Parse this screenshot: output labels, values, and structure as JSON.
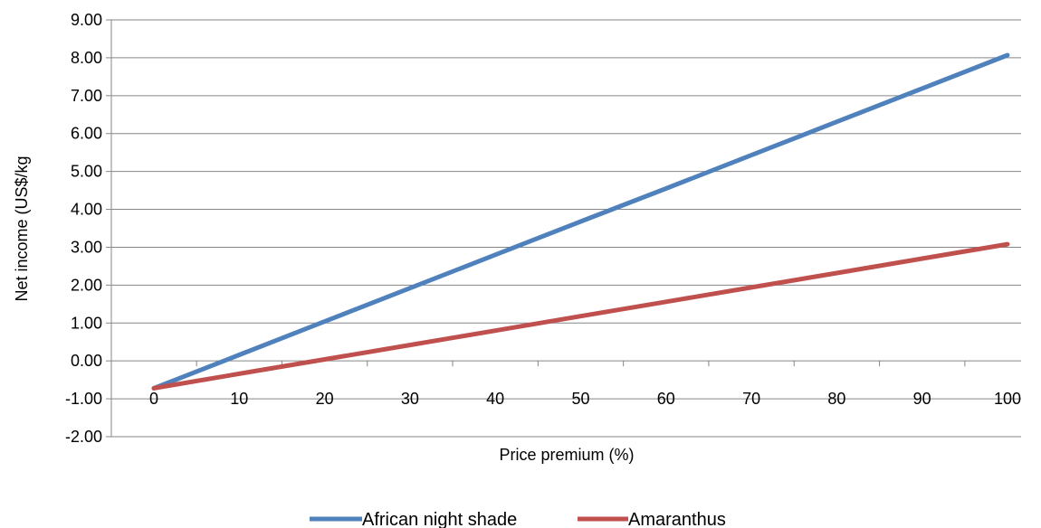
{
  "chart_data": {
    "type": "line",
    "title": "",
    "xlabel": "Price premium (%)",
    "ylabel": "Net income (US$/kg",
    "x": [
      0,
      10,
      20,
      30,
      40,
      50,
      60,
      70,
      80,
      90,
      100
    ],
    "x_tick_labels": [
      "0",
      "10",
      "20",
      "30",
      "40",
      "50",
      "60",
      "70",
      "80",
      "90",
      "100"
    ],
    "ylim": [
      -2,
      9
    ],
    "y_ticks": [
      -2,
      -1,
      0,
      1,
      2,
      3,
      4,
      5,
      6,
      7,
      8,
      9
    ],
    "y_tick_labels": [
      "-2.00",
      "-1.00",
      "0.00",
      "1.00",
      "2.00",
      "3.00",
      "4.00",
      "5.00",
      "6.00",
      "7.00",
      "8.00",
      "9.00"
    ],
    "grid": "horizontal",
    "legend_position": "bottom",
    "series": [
      {
        "name": "African night shade",
        "color": "#4F81BD",
        "values": [
          -0.72,
          0.16,
          1.04,
          1.92,
          2.8,
          3.68,
          4.55,
          5.43,
          6.31,
          7.19,
          8.07
        ]
      },
      {
        "name": "Amaranthus",
        "color": "#C0504D",
        "values": [
          -0.72,
          -0.34,
          0.04,
          0.42,
          0.8,
          1.18,
          1.56,
          1.94,
          2.32,
          2.7,
          3.08
        ]
      }
    ]
  }
}
